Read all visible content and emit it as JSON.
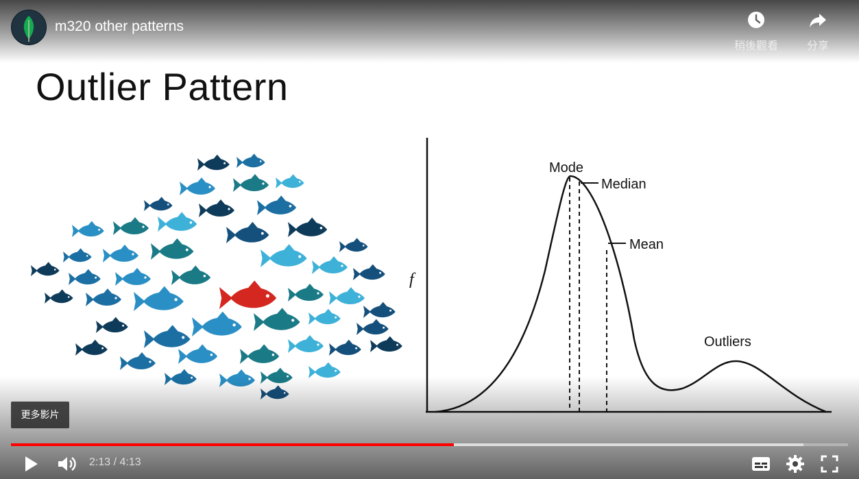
{
  "video": {
    "title": "m320 other patterns",
    "watch_later_label": "稍後觀看",
    "share_label": "分享",
    "more_videos_label": "更多影片",
    "current_time": "2:13",
    "time_separator": "/",
    "duration": "4:13",
    "progress": 0.529,
    "buffered": 0.947
  },
  "slide": {
    "title": "Outlier Pattern",
    "graph": {
      "y_axis_label": "f",
      "mode_label": "Mode",
      "median_label": "Median",
      "mean_label": "Mean",
      "outliers_label": "Outliers"
    }
  },
  "colors": {
    "progress_red": "#ff0000",
    "outlier_fish": "#d3271f",
    "fish_palette": [
      "#0f3b5a",
      "#1c6fa3",
      "#2a8fc4",
      "#1a7a86",
      "#3eb1d8",
      "#15507c"
    ]
  },
  "icons": {
    "channel": "leaf-icon",
    "watch_later": "clock-icon",
    "share": "share-arrow-icon",
    "play": "play-icon",
    "volume": "volume-icon",
    "captions": "captions-icon",
    "settings": "gear-icon",
    "fullscreen": "fullscreen-icon"
  }
}
